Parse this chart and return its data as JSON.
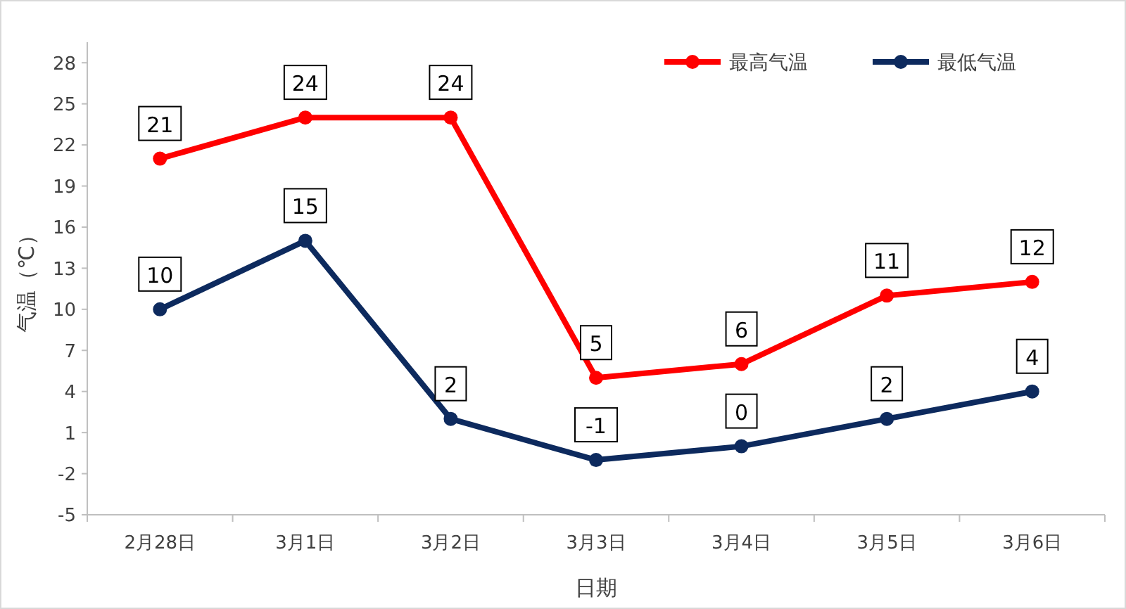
{
  "chart_data": {
    "type": "line",
    "xlabel": "日期",
    "ylabel": "气温（℃）",
    "categories": [
      "2月28日",
      "3月1日",
      "3月2日",
      "3月3日",
      "3月4日",
      "3月5日",
      "3月6日"
    ],
    "series": [
      {
        "name": "最高气温",
        "color": "#ff0000",
        "values": [
          21,
          24,
          24,
          5,
          6,
          11,
          12
        ]
      },
      {
        "name": "最低气温",
        "color": "#0d2a5e",
        "values": [
          10,
          15,
          2,
          -1,
          0,
          2,
          4
        ]
      }
    ],
    "ylim": [
      -5,
      29.5
    ],
    "yticks": [
      -5,
      -2,
      1,
      4,
      7,
      10,
      13,
      16,
      19,
      22,
      25,
      28
    ],
    "marker": "circle",
    "line_style": "solid",
    "data_labels": true,
    "grid": false,
    "legend": "top right"
  }
}
